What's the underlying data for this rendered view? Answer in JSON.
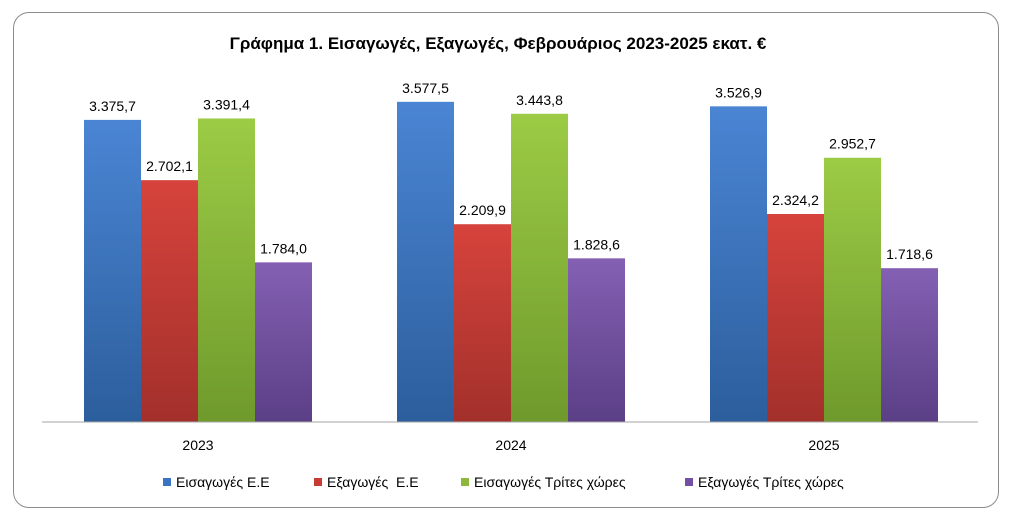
{
  "chart_data": {
    "type": "bar",
    "title": "Γράφημα 1. Εισαγωγές, Εξαγωγές, Φεβρουάριος 2023-2025 εκατ. €",
    "categories": [
      "2023",
      "2024",
      "2025"
    ],
    "series": [
      {
        "name": "Εισαγωγές Ε.Ε",
        "values": [
          3375.7,
          3577.5,
          3526.9
        ],
        "labels": [
          "3.375,7",
          "3.577,5",
          "3.526,9"
        ],
        "color": "#3a73c2"
      },
      {
        "name": "Εξαγωγές  Ε.Ε",
        "values": [
          2702.1,
          2209.9,
          2324.2
        ],
        "labels": [
          "2.702,1",
          "2.209,9",
          "2.324,2"
        ],
        "color": "#c83a34"
      },
      {
        "name": "Εισαγωγές Τρίτες χώρες",
        "values": [
          3391.4,
          3443.8,
          2952.7
        ],
        "labels": [
          "3.391,4",
          "3.443,8",
          "2.952,7"
        ],
        "color": "#8db83b"
      },
      {
        "name": "Εξαγωγές Τρίτες χώρες",
        "values": [
          1784.0,
          1828.6,
          1718.6
        ],
        "labels": [
          "1.784,0",
          "1.828,6",
          "1.718,6"
        ],
        "color": "#7350a2"
      }
    ],
    "ylim": [
      0,
      4000
    ],
    "grid": false,
    "legend_position": "bottom"
  }
}
